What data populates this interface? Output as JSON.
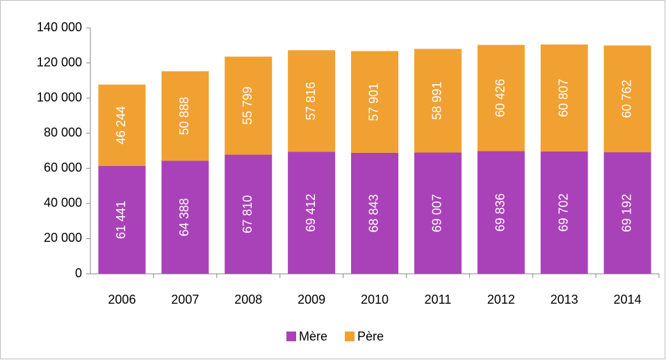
{
  "chart_data": {
    "type": "stacked_bar",
    "categories": [
      "2006",
      "2007",
      "2008",
      "2009",
      "2010",
      "2011",
      "2012",
      "2013",
      "2014"
    ],
    "series": [
      {
        "name": "Mère",
        "color": "#a942b8",
        "values": [
          61441,
          64388,
          67810,
          69412,
          68843,
          69007,
          69836,
          69702,
          69192
        ],
        "value_labels": [
          "61 441",
          "64 388",
          "67 810",
          "69 412",
          "68 843",
          "69 007",
          "69 836",
          "69 702",
          "69 192"
        ]
      },
      {
        "name": "Père",
        "color": "#f0a132",
        "values": [
          46244,
          50888,
          55799,
          57816,
          57901,
          58991,
          60426,
          60807,
          60762
        ],
        "value_labels": [
          "46 244",
          "50 888",
          "55 799",
          "57 816",
          "57 901",
          "58 991",
          "60 426",
          "60 807",
          "60 762"
        ]
      }
    ],
    "ylim": [
      0,
      140000
    ],
    "yticks": [
      0,
      {
        "value": 20000,
        "label": "20 000"
      },
      {
        "value": 40000,
        "label": "40 000"
      },
      {
        "value": 60000,
        "label": "60 000"
      },
      {
        "value": 80000,
        "label": "80 000"
      },
      {
        "value": 100000,
        "label": "100 000"
      },
      {
        "value": 120000,
        "label": "120 000"
      },
      {
        "value": 140000,
        "label": "140 000"
      }
    ],
    "grid": false,
    "legend": "bottom"
  }
}
